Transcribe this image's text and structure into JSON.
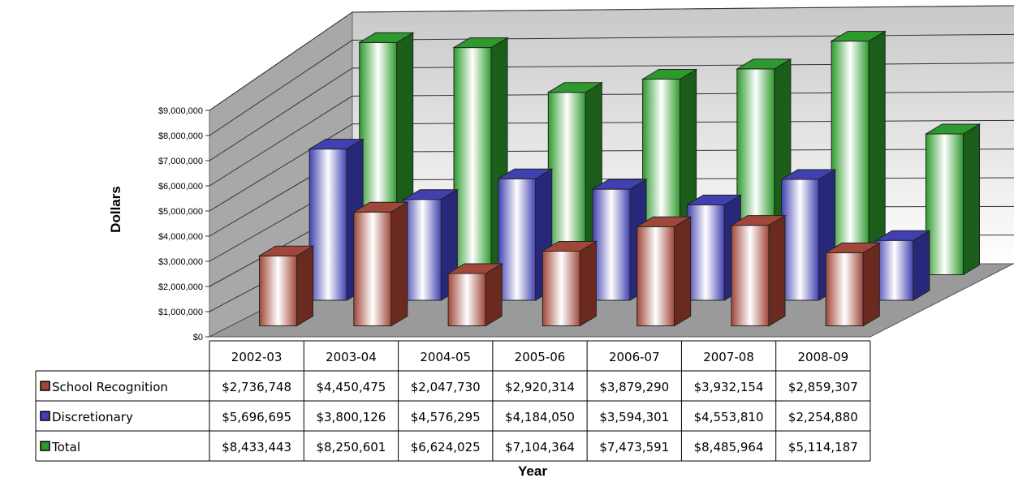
{
  "chart_data": {
    "type": "bar",
    "style": "3d-clustered-columns-with-data-table",
    "ylabel": "Dollars",
    "xlabel": "Year",
    "ylim": [
      0,
      9000000
    ],
    "ytick_step": 1000000,
    "ytick_labels": [
      "$0",
      "$1,000,000",
      "$2,000,000",
      "$3,000,000",
      "$4,000,000",
      "$5,000,000",
      "$6,000,000",
      "$7,000,000",
      "$8,000,000",
      "$9,000,000"
    ],
    "categories": [
      "2002-03",
      "2003-04",
      "2004-05",
      "2005-06",
      "2006-07",
      "2007-08",
      "2008-09"
    ],
    "grid": true,
    "legend_placement": "data-table-left",
    "series": [
      {
        "name": "School Recognition",
        "values": [
          2736748,
          4450475,
          2047730,
          2920314,
          3879290,
          3932154,
          2859307
        ],
        "labels": [
          "$2,736,748",
          "$4,450,475",
          "$2,047,730",
          "$2,920,314",
          "$3,879,290",
          "$3,932,154",
          "$2,859,307"
        ],
        "color": "#A0473A",
        "color_dark": "#6B2A20"
      },
      {
        "name": "Discretionary",
        "values": [
          5696695,
          3800126,
          4576295,
          4184050,
          3594301,
          4553810,
          2254880
        ],
        "labels": [
          "$5,696,695",
          "$3,800,126",
          "$4,576,295",
          "$4,184,050",
          "$3,594,301",
          "$4,553,810",
          "$2,254,880"
        ],
        "color": "#4040B0",
        "color_dark": "#28287A"
      },
      {
        "name": "Total",
        "values": [
          8433443,
          8250601,
          6624025,
          7104364,
          7473591,
          8485964,
          5114187
        ],
        "labels": [
          "$8,433,443",
          "$8,250,601",
          "$6,624,025",
          "$7,104,364",
          "$7,473,591",
          "$8,485,964",
          "$5,114,187"
        ],
        "color": "#2E9A2E",
        "color_dark": "#1A5E1A"
      }
    ]
  }
}
